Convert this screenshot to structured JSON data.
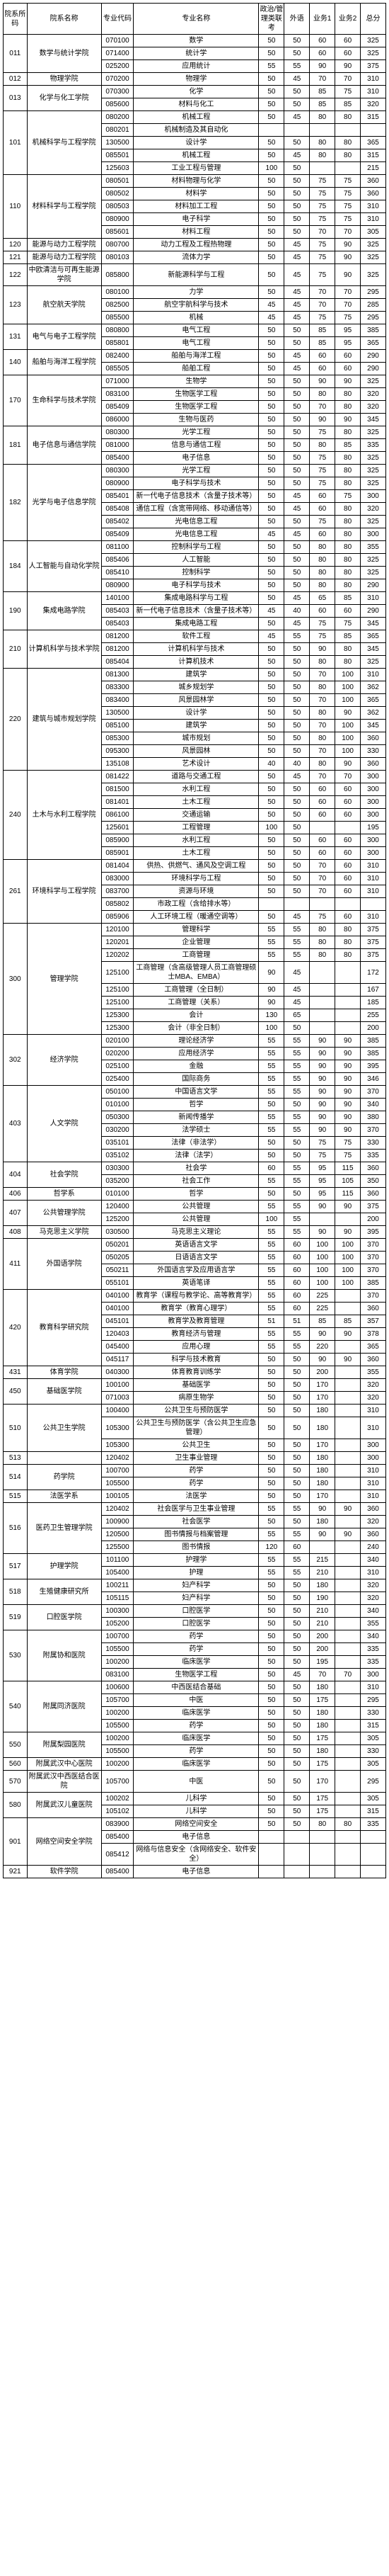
{
  "headers": [
    "院系所码",
    "院系名称",
    "专业代码",
    "专业名称",
    "政治/管理类联考",
    "外语",
    "业务1",
    "业务2",
    "总分"
  ],
  "rows": [
    [
      "011",
      "数学与统计学院",
      "070100",
      "数学",
      50,
      50,
      60,
      60,
      325
    ],
    [
      "011",
      "",
      "071400",
      "统计学",
      50,
      50,
      60,
      60,
      325
    ],
    [
      "011",
      "",
      "025200",
      "应用统计",
      55,
      55,
      90,
      90,
      375
    ],
    [
      "012",
      "物理学院",
      "070200",
      "物理学",
      50,
      45,
      70,
      70,
      310
    ],
    [
      "013",
      "化学与化工学院",
      "070300",
      "化学",
      50,
      50,
      85,
      75,
      310
    ],
    [
      "013",
      "",
      "085600",
      "材料与化工",
      50,
      50,
      85,
      85,
      320
    ],
    [
      "101",
      "机械科学与工程学院",
      "080200",
      "机械工程",
      50,
      45,
      80,
      80,
      315
    ],
    [
      "101",
      "",
      "080201",
      "机械制造及其自动化",
      "",
      "",
      "",
      "",
      ""
    ],
    [
      "101",
      "",
      "130500",
      "设计学",
      50,
      50,
      80,
      80,
      365
    ],
    [
      "101",
      "",
      "085501",
      "机械工程",
      50,
      45,
      80,
      80,
      315
    ],
    [
      "101",
      "",
      "125603",
      "工业工程与管理",
      100,
      50,
      "",
      "",
      215
    ],
    [
      "110",
      "材料科学与工程学院",
      "080501",
      "材料物理与化学",
      50,
      50,
      75,
      75,
      360
    ],
    [
      "110",
      "",
      "080502",
      "材料学",
      50,
      50,
      75,
      75,
      360
    ],
    [
      "110",
      "",
      "080503",
      "材料加工工程",
      50,
      50,
      75,
      75,
      310
    ],
    [
      "110",
      "",
      "080900",
      "电子科学",
      50,
      50,
      75,
      75,
      310
    ],
    [
      "110",
      "",
      "085601",
      "材料工程",
      50,
      50,
      70,
      70,
      305
    ],
    [
      "120",
      "能源与动力工程学院",
      "080700",
      "动力工程及工程热物理",
      50,
      45,
      75,
      90,
      325
    ],
    [
      "121",
      "能源与动力工程学院",
      "080103",
      "流体力学",
      50,
      45,
      75,
      90,
      325
    ],
    [
      "122",
      "中欧清洁与可再生能源学院",
      "085800",
      "新能源科学与工程",
      50,
      45,
      75,
      90,
      325
    ],
    [
      "123",
      "航空航天学院",
      "080100",
      "力学",
      50,
      45,
      70,
      70,
      295
    ],
    [
      "123",
      "",
      "082500",
      "航空宇航科学与技术",
      45,
      45,
      70,
      70,
      285
    ],
    [
      "123",
      "",
      "085500",
      "机械",
      45,
      45,
      75,
      75,
      295
    ],
    [
      "131",
      "电气与电子工程学院",
      "080800",
      "电气工程",
      50,
      50,
      85,
      95,
      385
    ],
    [
      "131",
      "",
      "085801",
      "电气工程",
      50,
      50,
      85,
      95,
      365
    ],
    [
      "140",
      "船舶与海洋工程学院",
      "082400",
      "船舶与海洋工程",
      50,
      45,
      60,
      60,
      290
    ],
    [
      "140",
      "",
      "085505",
      "船舶工程",
      50,
      45,
      60,
      60,
      290
    ],
    [
      "170",
      "生命科学与技术学院",
      "071000",
      "生物学",
      50,
      50,
      90,
      90,
      325
    ],
    [
      "170",
      "",
      "083100",
      "生物医学工程",
      50,
      50,
      80,
      80,
      320
    ],
    [
      "170",
      "",
      "085409",
      "生物医学工程",
      50,
      50,
      70,
      80,
      320
    ],
    [
      "170",
      "",
      "086000",
      "生物与医药",
      50,
      50,
      90,
      90,
      345
    ],
    [
      "181",
      "电子信息与通信学院",
      "080300",
      "光学工程",
      50,
      50,
      75,
      80,
      325
    ],
    [
      "181",
      "",
      "081000",
      "信息与通信工程",
      50,
      50,
      80,
      85,
      335
    ],
    [
      "181",
      "",
      "085400",
      "电子信息",
      50,
      50,
      75,
      80,
      325
    ],
    [
      "182",
      "光学与电子信息学院",
      "080300",
      "光学工程",
      50,
      50,
      75,
      80,
      325
    ],
    [
      "182",
      "",
      "080900",
      "电子科学与技术",
      50,
      50,
      75,
      80,
      325
    ],
    [
      "182",
      "",
      "085401",
      "新一代电子信息技术（含量子技术等）",
      50,
      45,
      60,
      75,
      300
    ],
    [
      "182",
      "",
      "085408",
      "通信工程（含宽带网络、移动通信等）",
      50,
      45,
      60,
      80,
      320
    ],
    [
      "182",
      "",
      "085402",
      "光电信息工程",
      50,
      50,
      75,
      80,
      325
    ],
    [
      "182",
      "",
      "085409",
      "光电信息工程",
      45,
      45,
      60,
      80,
      300
    ],
    [
      "184",
      "人工智能与自动化学院",
      "081100",
      "控制科学与工程",
      50,
      50,
      80,
      80,
      355
    ],
    [
      "184",
      "",
      "085406",
      "人工智能",
      50,
      50,
      80,
      80,
      325
    ],
    [
      "184",
      "",
      "085410",
      "控制科学",
      50,
      50,
      80,
      80,
      325
    ],
    [
      "184",
      "",
      "080900",
      "电子科学与技术",
      50,
      50,
      80,
      80,
      290
    ],
    [
      "190",
      "集成电路学院",
      "140100",
      "集成电路科学与工程",
      50,
      45,
      65,
      85,
      310
    ],
    [
      "190",
      "",
      "085403",
      "新一代电子信息技术（含量子技术等）",
      45,
      40,
      60,
      60,
      290
    ],
    [
      "190",
      "",
      "085403",
      "集成电路工程",
      50,
      45,
      75,
      75,
      345
    ],
    [
      "210",
      "计算机科学与技术学院",
      "081200",
      "软件工程",
      45,
      55,
      75,
      85,
      365
    ],
    [
      "210",
      "",
      "081200",
      "计算机科学与技术",
      50,
      50,
      90,
      80,
      345
    ],
    [
      "210",
      "",
      "085404",
      "计算机技术",
      50,
      50,
      80,
      80,
      325
    ],
    [
      "220",
      "建筑与城市规划学院",
      "081300",
      "建筑学",
      50,
      50,
      70,
      100,
      310
    ],
    [
      "220",
      "",
      "083300",
      "城乡规划学",
      50,
      50,
      80,
      100,
      362
    ],
    [
      "220",
      "",
      "083400",
      "风景园林学",
      50,
      50,
      70,
      100,
      365
    ],
    [
      "220",
      "",
      "130500",
      "设计学",
      50,
      50,
      80,
      90,
      362
    ],
    [
      "220",
      "",
      "085100",
      "建筑学",
      50,
      50,
      70,
      100,
      345
    ],
    [
      "220",
      "",
      "085300",
      "城市规划",
      50,
      50,
      80,
      100,
      360
    ],
    [
      "220",
      "",
      "095300",
      "风景园林",
      50,
      50,
      70,
      100,
      330
    ],
    [
      "220",
      "",
      "135108",
      "艺术设计",
      40,
      40,
      80,
      90,
      360
    ],
    [
      "240",
      "土木与水利工程学院",
      "081422",
      "道路与交通工程",
      50,
      45,
      70,
      70,
      300
    ],
    [
      "240",
      "",
      "081500",
      "水利工程",
      50,
      50,
      60,
      60,
      300
    ],
    [
      "240",
      "",
      "081401",
      "土木工程",
      50,
      50,
      60,
      60,
      300
    ],
    [
      "240",
      "",
      "086100",
      "交通运输",
      50,
      50,
      60,
      60,
      300
    ],
    [
      "240",
      "",
      "125601",
      "工程管理",
      100,
      50,
      "",
      "",
      195
    ],
    [
      "240",
      "",
      "085900",
      "水利工程",
      50,
      50,
      60,
      60,
      300
    ],
    [
      "240",
      "",
      "085901",
      "土木工程",
      50,
      50,
      60,
      60,
      300
    ],
    [
      "261",
      "环境科学与工程学院",
      "081404",
      "供热、供燃气、通风及空调工程",
      50,
      50,
      70,
      60,
      310
    ],
    [
      "261",
      "",
      "083000",
      "环境科学与工程",
      50,
      50,
      70,
      60,
      310
    ],
    [
      "261",
      "",
      "083700",
      "资源与环境",
      50,
      50,
      70,
      60,
      310
    ],
    [
      "261",
      "",
      "085802",
      "市政工程（含给排水等）",
      "",
      "",
      "",
      "",
      ""
    ],
    [
      "261",
      "",
      "085906",
      "人工环境工程（暖通空调等）",
      50,
      45,
      75,
      60,
      310
    ],
    [
      "300",
      "管理学院",
      "120100",
      "管理科学",
      55,
      55,
      80,
      80,
      375
    ],
    [
      "300",
      "",
      "120201",
      "企业管理",
      55,
      55,
      80,
      80,
      375
    ],
    [
      "300",
      "",
      "120202",
      "工商管理",
      55,
      55,
      80,
      80,
      375
    ],
    [
      "300",
      "",
      "125100",
      "工商管理（含高级管理人员工商管理硕士MBA、EMBA）",
      90,
      45,
      "",
      "",
      172
    ],
    [
      "300",
      "",
      "125100",
      "工商管理（全日制）",
      90,
      45,
      "",
      "",
      167
    ],
    [
      "300",
      "",
      "125100",
      "工商管理（关系）",
      90,
      45,
      "",
      "",
      185
    ],
    [
      "300",
      "",
      "125300",
      "会计",
      130,
      65,
      "",
      "",
      255
    ],
    [
      "300",
      "",
      "125300",
      "会计（非全日制）",
      100,
      50,
      "",
      "",
      200
    ],
    [
      "302",
      "经济学院",
      "020100",
      "理论经济学",
      55,
      55,
      90,
      90,
      385
    ],
    [
      "302",
      "",
      "020200",
      "应用经济学",
      55,
      55,
      90,
      90,
      385
    ],
    [
      "302",
      "",
      "025100",
      "金融",
      55,
      55,
      90,
      90,
      395
    ],
    [
      "302",
      "",
      "025400",
      "国际商务",
      55,
      55,
      90,
      90,
      346
    ],
    [
      "403",
      "人文学院",
      "050100",
      "中国语言文学",
      55,
      55,
      90,
      90,
      370
    ],
    [
      "403",
      "",
      "010100",
      "哲学",
      50,
      50,
      90,
      90,
      340
    ],
    [
      "403",
      "",
      "050300",
      "新闻传播学",
      55,
      55,
      90,
      90,
      380
    ],
    [
      "403",
      "",
      "030200",
      "法学硕士",
      55,
      55,
      90,
      90,
      370
    ],
    [
      "403",
      "",
      "035101",
      "法律（非法学）",
      50,
      50,
      75,
      75,
      330
    ],
    [
      "403",
      "",
      "035102",
      "法律（法学）",
      50,
      50,
      75,
      75,
      335
    ],
    [
      "404",
      "社会学院",
      "030300",
      "社会学",
      60,
      55,
      95,
      115,
      360
    ],
    [
      "404",
      "",
      "035200",
      "社会工作",
      55,
      55,
      95,
      105,
      350
    ],
    [
      "406",
      "哲学系",
      "010100",
      "哲学",
      50,
      50,
      95,
      115,
      360
    ],
    [
      "407",
      "公共管理学院",
      "120400",
      "公共管理",
      55,
      55,
      90,
      90,
      375
    ],
    [
      "407",
      "",
      "125200",
      "公共管理",
      100,
      55,
      "",
      "",
      200
    ],
    [
      "408",
      "马克思主义学院",
      "030500",
      "马克思主义理论",
      55,
      55,
      90,
      90,
      395
    ],
    [
      "411",
      "外国语学院",
      "050201",
      "英语语言文学",
      55,
      60,
      100,
      100,
      370
    ],
    [
      "411",
      "",
      "050205",
      "日语语言文学",
      55,
      60,
      100,
      100,
      370
    ],
    [
      "411",
      "",
      "050211",
      "外国语言学及应用语言学",
      55,
      60,
      100,
      100,
      370
    ],
    [
      "411",
      "",
      "055101",
      "英语笔译",
      55,
      60,
      100,
      100,
      385
    ],
    [
      "420",
      "教育科学研究院",
      "040100",
      "教育学（课程与教学论、高等教育学）",
      55,
      60,
      225,
      "",
      370
    ],
    [
      "420",
      "",
      "040100",
      "教育学（教育心理学）",
      55,
      60,
      225,
      "",
      360
    ],
    [
      "420",
      "",
      "045101",
      "教育学及教育管理",
      51,
      51,
      85,
      85,
      357
    ],
    [
      "420",
      "",
      "120403",
      "教育经济与管理",
      55,
      55,
      90,
      90,
      378
    ],
    [
      "420",
      "",
      "045400",
      "应用心理",
      55,
      55,
      220,
      "",
      365
    ],
    [
      "420",
      "",
      "045117",
      "科学与技术教育",
      50,
      50,
      90,
      90,
      360
    ],
    [
      "431",
      "体育学院",
      "040300",
      "体育教育训练学",
      50,
      50,
      200,
      "",
      355
    ],
    [
      "450",
      "基础医学院",
      "100100",
      "基础医学",
      50,
      50,
      170,
      "",
      320
    ],
    [
      "450",
      "",
      "071003",
      "病原生物学",
      50,
      50,
      170,
      "",
      320
    ],
    [
      "510",
      "公共卫生学院",
      "100400",
      "公共卫生与预防医学",
      50,
      50,
      180,
      "",
      310
    ],
    [
      "510",
      "",
      "105300",
      "公共卫生与预防医学（含公共卫生应急管理）",
      50,
      50,
      180,
      "",
      310
    ],
    [
      "510",
      "",
      "105300",
      "公共卫生",
      50,
      50,
      170,
      "",
      300
    ],
    [
      "513",
      "",
      "120402",
      "卫生事业管理",
      50,
      50,
      180,
      "",
      300
    ],
    [
      "514",
      "药学院",
      "100700",
      "药学",
      50,
      50,
      180,
      "",
      310
    ],
    [
      "514",
      "",
      "105500",
      "药学",
      50,
      50,
      180,
      "",
      310
    ],
    [
      "515",
      "法医学系",
      "100105",
      "法医学",
      50,
      50,
      170,
      "",
      310
    ],
    [
      "516",
      "医药卫生管理学院",
      "120402",
      "社会医学与卫生事业管理",
      55,
      55,
      90,
      90,
      360
    ],
    [
      "516",
      "",
      "100900",
      "社会医学",
      50,
      50,
      180,
      "",
      320
    ],
    [
      "516",
      "",
      "120500",
      "图书情报与档案管理",
      55,
      55,
      90,
      90,
      360
    ],
    [
      "516",
      "",
      "125500",
      "图书情报",
      120,
      60,
      "",
      "",
      240
    ],
    [
      "517",
      "护理学院",
      "101100",
      "护理学",
      55,
      55,
      215,
      "",
      340
    ],
    [
      "517",
      "",
      "105400",
      "护理",
      55,
      55,
      210,
      "",
      310
    ],
    [
      "518",
      "生殖健康研究所",
      "100211",
      "妇产科学",
      50,
      50,
      180,
      "",
      320
    ],
    [
      "518",
      "",
      "105115",
      "妇产科学",
      50,
      50,
      190,
      "",
      320
    ],
    [
      "519",
      "口腔医学院",
      "100300",
      "口腔医学",
      50,
      50,
      210,
      "",
      340
    ],
    [
      "519",
      "",
      "105200",
      "口腔医学",
      50,
      50,
      210,
      "",
      355
    ],
    [
      "530",
      "附属协和医院",
      "100700",
      "药学",
      50,
      50,
      200,
      "",
      340
    ],
    [
      "530",
      "",
      "105500",
      "药学",
      50,
      50,
      200,
      "",
      335
    ],
    [
      "530",
      "",
      "100200",
      "临床医学",
      50,
      50,
      195,
      "",
      335
    ],
    [
      "530",
      "",
      "083100",
      "生物医学工程",
      50,
      45,
      70,
      70,
      300
    ],
    [
      "540",
      "附属同济医院",
      "100600",
      "中西医结合基础",
      50,
      50,
      180,
      "",
      310
    ],
    [
      "540",
      "",
      "105700",
      "中医",
      50,
      50,
      175,
      "",
      295
    ],
    [
      "540",
      "",
      "100200",
      "临床医学",
      50,
      50,
      180,
      "",
      330
    ],
    [
      "540",
      "",
      "105500",
      "药学",
      50,
      50,
      180,
      "",
      315
    ],
    [
      "550",
      "附属梨园医院",
      "100200",
      "临床医学",
      50,
      50,
      175,
      "",
      305
    ],
    [
      "550",
      "",
      "105500",
      "药学",
      50,
      50,
      180,
      "",
      330
    ],
    [
      "560",
      "附属武汉中心医院",
      "100200",
      "临床医学",
      50,
      50,
      175,
      "",
      305
    ],
    [
      "570",
      "附属武汉中西医结合医院",
      "105700",
      "中医",
      50,
      50,
      170,
      "",
      295
    ],
    [
      "580",
      "附属武汉儿童医院",
      "100202",
      "儿科学",
      50,
      50,
      175,
      "",
      305
    ],
    [
      "580",
      "",
      "105102",
      "儿科学",
      50,
      50,
      175,
      "",
      315
    ],
    [
      "901",
      "网络空间安全学院",
      "083900",
      "网络空间安全",
      50,
      50,
      80,
      80,
      335
    ],
    [
      "901",
      "",
      "085400",
      "电子信息",
      "",
      "",
      "",
      "",
      ""
    ],
    [
      "901",
      "",
      "085412",
      "网络与信息安全（含网络安全、软件安全）",
      "",
      "",
      "",
      "",
      ""
    ],
    [
      "921",
      "软件学院",
      "085400",
      "电子信息",
      "",
      "",
      "",
      "",
      ""
    ]
  ]
}
